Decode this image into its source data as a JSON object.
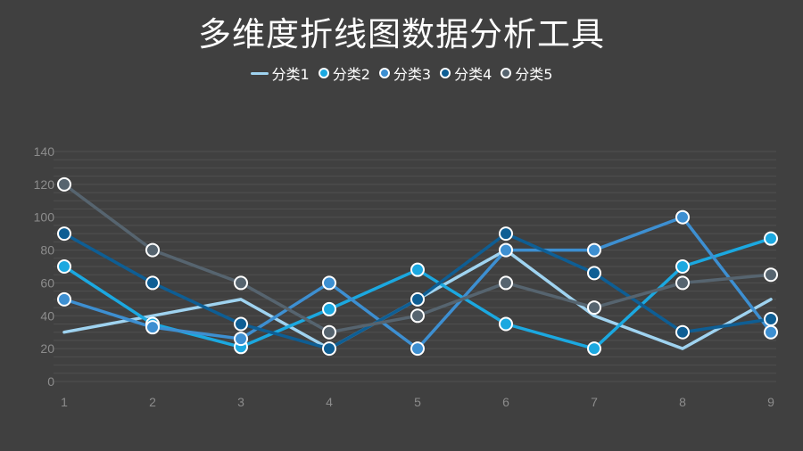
{
  "title": "多维度折线图数据分析工具",
  "chart_data": {
    "type": "line",
    "title": "多维度折线图数据分析工具",
    "x": [
      1,
      2,
      3,
      4,
      5,
      6,
      7,
      8,
      9
    ],
    "ylim": [
      0,
      140
    ],
    "yticks": [
      0,
      20,
      40,
      60,
      80,
      100,
      120,
      140
    ],
    "grid": true,
    "legend_position": "top",
    "series": [
      {
        "name": "分类1",
        "color": "#9fd3f0",
        "markers": false,
        "values": [
          30,
          40,
          50,
          20,
          50,
          80,
          40,
          20,
          50
        ]
      },
      {
        "name": "分类2",
        "color": "#1ba8e0",
        "markers": true,
        "values": [
          70,
          35,
          21,
          44,
          68,
          35,
          20,
          70,
          87
        ]
      },
      {
        "name": "分类3",
        "color": "#3d8fd1",
        "markers": true,
        "values": [
          50,
          33,
          26,
          60,
          20,
          80,
          80,
          100,
          30
        ]
      },
      {
        "name": "分类4",
        "color": "#0e5e94",
        "markers": true,
        "values": [
          90,
          60,
          35,
          20,
          50,
          90,
          66,
          30,
          38
        ]
      },
      {
        "name": "分类5",
        "color": "#56646f",
        "markers": true,
        "values": [
          120,
          80,
          60,
          30,
          40,
          60,
          45,
          60,
          65
        ]
      }
    ]
  }
}
